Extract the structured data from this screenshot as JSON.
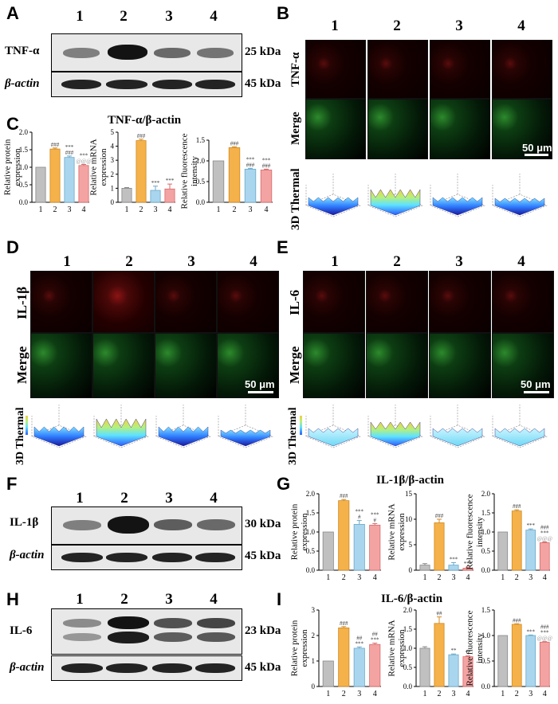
{
  "panels": {
    "A": "A",
    "B": "B",
    "C": "C",
    "D": "D",
    "E": "E",
    "F": "F",
    "G": "G",
    "H": "H",
    "I": "I"
  },
  "lanes": [
    "1",
    "2",
    "3",
    "4"
  ],
  "blots": {
    "A": {
      "target": "TNF-α",
      "target_kda": "25 kDa",
      "ref": "β-actin",
      "ref_kda": "45 kDa",
      "intensity": [
        0.45,
        0.95,
        0.55,
        0.5
      ]
    },
    "F": {
      "target": "IL-1β",
      "target_kda": "30 kDa",
      "ref": "β-actin",
      "ref_kda": "45 kDa",
      "intensity": [
        0.45,
        0.95,
        0.6,
        0.55
      ]
    },
    "H": {
      "target": "IL-6",
      "target_kda": "23 kDa",
      "ref": "β-actin",
      "ref_kda": "45 kDa",
      "intensity": [
        0.4,
        0.95,
        0.65,
        0.7
      ]
    }
  },
  "imaging": {
    "B": {
      "row1": "TNF-α",
      "row2": "Merge",
      "row3": "3D Thermal",
      "scale": "50 μm"
    },
    "D": {
      "row1": "IL-1β",
      "row2": "Merge",
      "row3": "3D Thermal",
      "scale": "50 μm"
    },
    "E": {
      "row1": "IL-6",
      "row2": "Merge",
      "row3": "3D Thermal",
      "scale": "50 μm"
    }
  },
  "titles": {
    "C": "TNF-α/β-actin",
    "G": "IL-1β/β-actin",
    "I": "IL-6/β-actin"
  },
  "colors": {
    "g1": "#c0c0c0",
    "g2": "#f5b14a",
    "g3": "#a9d6ee",
    "g4": "#f4a3a3"
  },
  "chart_data": [
    {
      "id": "C1",
      "type": "bar",
      "ylabel": "Relative protein expression",
      "categories": [
        "1",
        "2",
        "3",
        "4"
      ],
      "values": [
        1.0,
        1.52,
        1.28,
        1.05
      ],
      "errors": [
        0,
        0.03,
        0.04,
        0.03
      ],
      "ylim": [
        0,
        2.0
      ],
      "yticks": [
        "0.0",
        "0.5",
        "1.0",
        "1.5",
        "2.0"
      ],
      "tickvals": [
        0,
        0.5,
        1.0,
        1.5,
        2.0
      ],
      "annotations": [
        [
          "",
          "",
          "",
          ""
        ],
        [
          "",
          "###",
          "",
          ""
        ],
        [
          "",
          "",
          "###",
          "@@@"
        ],
        [
          "",
          "",
          "***",
          "***"
        ]
      ]
    },
    {
      "id": "C2",
      "type": "bar",
      "ylabel": "Relative mRNA expression",
      "categories": [
        "1",
        "2",
        "3",
        "4"
      ],
      "values": [
        1.0,
        4.4,
        0.85,
        0.95
      ],
      "errors": [
        0.05,
        0.1,
        0.3,
        0.35
      ],
      "ylim": [
        0,
        5
      ],
      "yticks": [
        "0",
        "1",
        "2",
        "3",
        "4",
        "5"
      ],
      "tickvals": [
        0,
        1,
        2,
        3,
        4,
        5
      ],
      "annotations": [
        [
          "",
          "###",
          "",
          ""
        ],
        [
          "",
          "",
          "***",
          "***"
        ]
      ]
    },
    {
      "id": "C3",
      "type": "bar",
      "ylabel": "Relative fluorescence intensity",
      "categories": [
        "1",
        "2",
        "3",
        "4"
      ],
      "values": [
        1.0,
        1.32,
        0.8,
        0.78
      ],
      "errors": [
        0,
        0.02,
        0.02,
        0.02
      ],
      "ylim": [
        0,
        1.5
      ],
      "yticks": [
        "0.0",
        "0.5",
        "1.0",
        "1.5"
      ],
      "tickvals": [
        0,
        0.5,
        1.0,
        1.5
      ],
      "annotations": [
        [
          "",
          "###",
          "",
          ""
        ],
        [
          "",
          "",
          "###",
          "###"
        ],
        [
          "",
          "",
          "***",
          "***"
        ]
      ]
    },
    {
      "id": "G1",
      "type": "bar",
      "ylabel": "Relative protein expression",
      "categories": [
        "1",
        "2",
        "3",
        "4"
      ],
      "values": [
        1.0,
        1.82,
        1.2,
        1.18
      ],
      "errors": [
        0,
        0.03,
        0.1,
        0.04
      ],
      "ylim": [
        0,
        2.0
      ],
      "yticks": [
        "0.0",
        "0.5",
        "1.0",
        "1.5",
        "2.0"
      ],
      "tickvals": [
        0,
        0.5,
        1.0,
        1.5,
        2.0
      ],
      "annotations": [
        [
          "",
          "###",
          "",
          ""
        ],
        [
          "",
          "",
          "#",
          "#"
        ],
        [
          "",
          "",
          "***",
          "***"
        ]
      ]
    },
    {
      "id": "G2",
      "type": "bar",
      "ylabel": "Relative mRNA expression",
      "categories": [
        "1",
        "2",
        "3",
        "4"
      ],
      "values": [
        1.0,
        9.3,
        1.0,
        0.4
      ],
      "errors": [
        0.3,
        0.7,
        0.5,
        0.2
      ],
      "ylim": [
        0,
        15
      ],
      "yticks": [
        "0",
        "5",
        "10",
        "15"
      ],
      "tickvals": [
        0,
        5,
        10,
        15
      ],
      "annotations": [
        [
          "",
          "###",
          "",
          ""
        ],
        [
          "",
          "",
          "***",
          "***"
        ]
      ]
    },
    {
      "id": "G3",
      "type": "bar",
      "ylabel": "Relative fluorescence intensity",
      "categories": [
        "1",
        "2",
        "3",
        "4"
      ],
      "values": [
        1.0,
        1.55,
        1.05,
        0.72
      ],
      "errors": [
        0,
        0.03,
        0.03,
        0.02
      ],
      "ylim": [
        0,
        2.0
      ],
      "yticks": [
        "0.0",
        "0.5",
        "1.0",
        "1.5",
        "2.0"
      ],
      "tickvals": [
        0,
        0.5,
        1.0,
        1.5,
        2.0
      ],
      "annotations": [
        [
          "",
          "###",
          "",
          ""
        ],
        [
          "",
          "",
          "***",
          "@@@"
        ],
        [
          "",
          "",
          "",
          "***"
        ],
        [
          "",
          "",
          "",
          "###"
        ]
      ]
    },
    {
      "id": "I1",
      "type": "bar",
      "ylabel": "Relative protein expression",
      "categories": [
        "1",
        "2",
        "3",
        "4"
      ],
      "values": [
        1.0,
        2.3,
        1.5,
        1.65
      ],
      "errors": [
        0,
        0.05,
        0.05,
        0.05
      ],
      "ylim": [
        0,
        3
      ],
      "yticks": [
        "0",
        "1",
        "2",
        "3"
      ],
      "tickvals": [
        0,
        1,
        2,
        3
      ],
      "annotations": [
        [
          "",
          "###",
          "",
          ""
        ],
        [
          "",
          "",
          "***",
          "***"
        ],
        [
          "",
          "",
          "##",
          "##"
        ]
      ]
    },
    {
      "id": "I2",
      "type": "bar",
      "ylabel": "Relative mRNA expression",
      "categories": [
        "1",
        "2",
        "3",
        "4"
      ],
      "values": [
        1.0,
        1.65,
        0.83,
        0.78
      ],
      "errors": [
        0.04,
        0.17,
        0.02,
        0.02
      ],
      "ylim": [
        0,
        2.0
      ],
      "yticks": [
        "0.0",
        "0.5",
        "1.0",
        "1.5",
        "2.0"
      ],
      "tickvals": [
        0,
        0.5,
        1.0,
        1.5,
        2.0
      ],
      "annotations": [
        [
          "",
          "##",
          "",
          ""
        ],
        [
          "",
          "",
          "**",
          "**"
        ]
      ]
    },
    {
      "id": "I3",
      "type": "bar",
      "ylabel": "Relative fluorescence intensity",
      "categories": [
        "1",
        "2",
        "3",
        "4"
      ],
      "values": [
        1.0,
        1.22,
        1.0,
        0.87
      ],
      "errors": [
        0,
        0.01,
        0.01,
        0.01
      ],
      "ylim": [
        0,
        1.5
      ],
      "yticks": [
        "0.0",
        "0.5",
        "1.0",
        "1.5"
      ],
      "tickvals": [
        0,
        0.5,
        1.0,
        1.5
      ],
      "annotations": [
        [
          "",
          "###",
          "",
          ""
        ],
        [
          "",
          "",
          "***",
          "@@@"
        ],
        [
          "",
          "",
          "",
          "***"
        ],
        [
          "",
          "",
          "",
          "###"
        ]
      ]
    }
  ]
}
